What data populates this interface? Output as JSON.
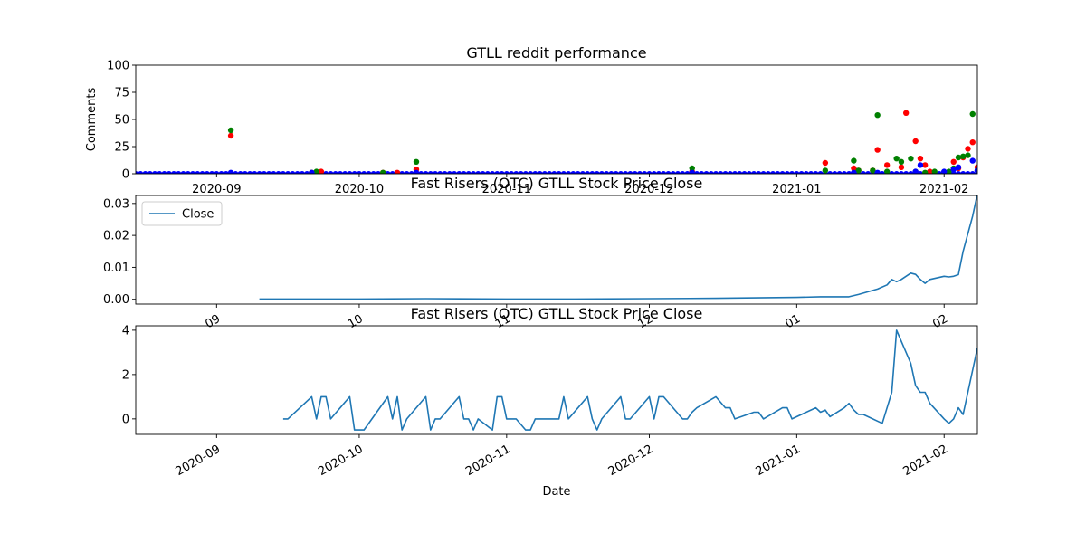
{
  "chart_data": [
    {
      "type": "scatter",
      "title": "GTLL reddit performance",
      "xlabel": "",
      "ylabel": "Comments",
      "xlim": [
        "2020-08-15",
        "2021-02-08"
      ],
      "ylim": [
        0,
        100
      ],
      "yticks": [
        0,
        25,
        50,
        75,
        100
      ],
      "xticks": [
        "2020-09",
        "2020-10",
        "2020-11",
        "2020-12",
        "2021-01",
        "2021-02"
      ],
      "colors": [
        "#ff0000",
        "#008000",
        "#0000ff"
      ],
      "grid": false,
      "series": [
        {
          "x": [
            "2020-09-04",
            "2020-09-21",
            "2020-09-22",
            "2020-09-23",
            "2020-10-06",
            "2020-10-09",
            "2020-10-13",
            "2020-12-10",
            "2021-01-07",
            "2021-01-13",
            "2021-01-14",
            "2021-01-17",
            "2021-01-18",
            "2021-01-20",
            "2021-01-23",
            "2021-01-24",
            "2021-01-26",
            "2021-01-27",
            "2021-01-28",
            "2021-01-29",
            "2021-02-01",
            "2021-02-03",
            "2021-02-04",
            "2021-02-05",
            "2021-02-06",
            "2021-02-07",
            "2021-02-08"
          ],
          "values": [
            35,
            1,
            1,
            2,
            1,
            1,
            4,
            2,
            10,
            5,
            3,
            3,
            22,
            8,
            6,
            56,
            30,
            14,
            8,
            2,
            1,
            11,
            5,
            15,
            23,
            29,
            6
          ]
        },
        {
          "x": [
            "2020-09-04",
            "2020-09-21",
            "2020-09-22",
            "2020-10-06",
            "2020-10-13",
            "2020-12-10",
            "2021-01-07",
            "2021-01-13",
            "2021-01-14",
            "2021-01-17",
            "2021-01-18",
            "2021-01-20",
            "2021-01-22",
            "2021-01-23",
            "2021-01-25",
            "2021-01-26",
            "2021-01-28",
            "2021-01-30",
            "2021-02-01",
            "2021-02-02",
            "2021-02-03",
            "2021-02-04",
            "2021-02-05",
            "2021-02-06",
            "2021-02-07",
            "2021-02-08"
          ],
          "values": [
            40,
            1,
            2,
            1,
            11,
            5,
            3,
            12,
            3,
            3,
            54,
            2,
            14,
            11,
            14,
            2,
            1,
            2,
            1,
            2,
            5,
            15,
            16,
            17,
            55,
            3
          ]
        },
        {
          "x": [
            "2020-09-04",
            "2020-09-21",
            "2020-10-13",
            "2020-12-10",
            "2021-01-13",
            "2021-01-18",
            "2021-01-26",
            "2021-01-27",
            "2021-02-01",
            "2021-02-03",
            "2021-02-04",
            "2021-02-07",
            "2021-02-08"
          ],
          "values": [
            1,
            1,
            1,
            1,
            1,
            1,
            2,
            8,
            2,
            4,
            6,
            12,
            3
          ]
        }
      ]
    },
    {
      "type": "line",
      "title": "Fast Risers (OTC) GTLL Stock Price Close",
      "xlabel": "",
      "ylabel": "",
      "xlim": [
        "2020-08-15",
        "2021-02-08"
      ],
      "ylim": [
        -0.0015,
        0.0325
      ],
      "yticks": [
        0.0,
        0.01,
        0.02,
        0.03
      ],
      "ytick_labels": [
        "0.00",
        "0.01",
        "0.02",
        "0.03"
      ],
      "xticks": [
        "2020-09",
        "2020-10",
        "2020-11",
        "2020-12",
        "2021-01",
        "2021-02"
      ],
      "xtick_labels": [
        "09",
        "10",
        "11",
        "12",
        "01",
        "02"
      ],
      "legend": "upper-left",
      "color": "#1f77b4",
      "series": [
        {
          "name": "Close",
          "x": [
            "2020-09-10",
            "2020-09-20",
            "2020-10-01",
            "2020-10-15",
            "2020-11-01",
            "2020-11-15",
            "2020-12-01",
            "2020-12-15",
            "2021-01-01",
            "2021-01-06",
            "2021-01-12",
            "2021-01-14",
            "2021-01-18",
            "2021-01-20",
            "2021-01-21",
            "2021-01-22",
            "2021-01-23",
            "2021-01-25",
            "2021-01-26",
            "2021-01-27",
            "2021-01-28",
            "2021-01-29",
            "2021-02-01",
            "2021-02-02",
            "2021-02-03",
            "2021-02-04",
            "2021-02-05",
            "2021-02-07",
            "2021-02-08"
          ],
          "values": [
            0.0001,
            0.0001,
            0.0001,
            0.0002,
            0.0001,
            0.0001,
            0.0002,
            0.0003,
            0.0006,
            0.0008,
            0.0008,
            0.0015,
            0.0032,
            0.0045,
            0.0062,
            0.0055,
            0.0062,
            0.0082,
            0.0078,
            0.0062,
            0.005,
            0.0062,
            0.0072,
            0.007,
            0.0072,
            0.0077,
            0.015,
            0.026,
            0.033
          ]
        }
      ]
    },
    {
      "type": "line",
      "title": "Fast Risers (OTC) GTLL Stock Price Close",
      "xlabel": "Date",
      "ylabel": "",
      "xlim": [
        "2020-08-15",
        "2021-02-08"
      ],
      "ylim": [
        -0.7,
        4.2
      ],
      "yticks": [
        0,
        2,
        4
      ],
      "xticks": [
        "2020-09",
        "2020-10",
        "2020-11",
        "2020-12",
        "2021-01",
        "2021-02"
      ],
      "color": "#1f77b4",
      "series": [
        {
          "x": [
            "2020-09-15",
            "2020-09-16",
            "2020-09-21",
            "2020-09-22",
            "2020-09-23",
            "2020-09-24",
            "2020-09-25",
            "2020-09-29",
            "2020-09-30",
            "2020-10-01",
            "2020-10-02",
            "2020-10-07",
            "2020-10-08",
            "2020-10-09",
            "2020-10-10",
            "2020-10-11",
            "2020-10-15",
            "2020-10-16",
            "2020-10-17",
            "2020-10-18",
            "2020-10-22",
            "2020-10-23",
            "2020-10-24",
            "2020-10-25",
            "2020-10-26",
            "2020-10-29",
            "2020-10-30",
            "2020-10-31",
            "2020-11-01",
            "2020-11-03",
            "2020-11-05",
            "2020-11-06",
            "2020-11-07",
            "2020-11-12",
            "2020-11-13",
            "2020-11-14",
            "2020-11-18",
            "2020-11-19",
            "2020-11-20",
            "2020-11-21",
            "2020-11-25",
            "2020-11-26",
            "2020-11-27",
            "2020-12-01",
            "2020-12-02",
            "2020-12-03",
            "2020-12-04",
            "2020-12-08",
            "2020-12-09",
            "2020-12-10",
            "2020-12-11",
            "2020-12-15",
            "2020-12-17",
            "2020-12-18",
            "2020-12-19",
            "2020-12-23",
            "2020-12-24",
            "2020-12-25",
            "2020-12-29",
            "2020-12-30",
            "2020-12-31",
            "2021-01-05",
            "2021-01-06",
            "2021-01-07",
            "2021-01-08",
            "2021-01-11",
            "2021-01-12",
            "2021-01-13",
            "2021-01-14",
            "2021-01-15",
            "2021-01-19",
            "2021-01-21",
            "2021-01-22",
            "2021-01-25",
            "2021-01-26",
            "2021-01-27",
            "2021-01-28",
            "2021-01-29",
            "2021-02-01",
            "2021-02-02",
            "2021-02-03",
            "2021-02-04",
            "2021-02-05",
            "2021-02-08"
          ],
          "values": [
            0.0,
            0.0,
            1.0,
            0.0,
            1.0,
            1.0,
            0.0,
            1.0,
            -0.5,
            -0.5,
            -0.5,
            1.0,
            0.0,
            1.0,
            -0.5,
            0.0,
            1.0,
            -0.5,
            0.0,
            0.0,
            1.0,
            0.0,
            0.0,
            -0.5,
            0.0,
            -0.5,
            1.0,
            1.0,
            0.0,
            0.0,
            -0.5,
            -0.5,
            0.0,
            0.0,
            1.0,
            0.0,
            1.0,
            0.0,
            -0.5,
            0.0,
            1.0,
            0.0,
            0.0,
            1.0,
            0.0,
            1.0,
            1.0,
            0.0,
            0.0,
            0.3,
            0.5,
            1.0,
            0.5,
            0.5,
            0.0,
            0.3,
            0.3,
            0.0,
            0.5,
            0.5,
            0.0,
            0.5,
            0.3,
            0.4,
            0.1,
            0.5,
            0.7,
            0.4,
            0.2,
            0.2,
            -0.2,
            1.2,
            4.0,
            2.5,
            1.5,
            1.2,
            1.2,
            0.7,
            0.0,
            -0.2,
            0.0,
            0.5,
            0.2,
            3.2
          ]
        }
      ]
    }
  ]
}
